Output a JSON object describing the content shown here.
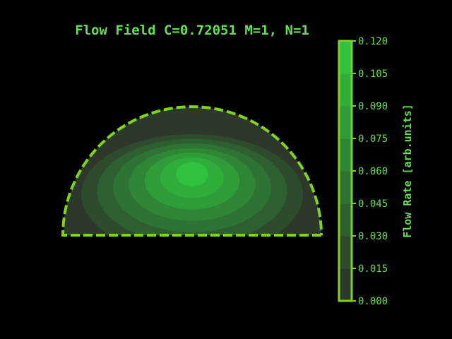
{
  "chart_data": {
    "type": "heatmap",
    "title": "Flow Field C=0.72051 M=1, N=1",
    "colorbar": {
      "label": "Flow Rate [arb.units]",
      "min": 0.0,
      "max": 0.12,
      "ticks": [
        "0.000",
        "0.015",
        "0.030",
        "0.045",
        "0.060",
        "0.075",
        "0.090",
        "0.105",
        "0.120"
      ],
      "tick_values": [
        0.0,
        0.015,
        0.03,
        0.045,
        0.06,
        0.075,
        0.09,
        0.105,
        0.12
      ]
    },
    "domain_shape": "semicircle",
    "boundary_style": "dashed",
    "contour_levels": [
      0.015,
      0.03,
      0.045,
      0.06,
      0.075,
      0.09,
      0.105,
      0.12
    ],
    "peak_value": 0.12,
    "colors": {
      "background": "#000000",
      "accent": "#7ed321",
      "text": "#66dd55",
      "low": "#2e382a",
      "high": "#2fc23f"
    }
  }
}
